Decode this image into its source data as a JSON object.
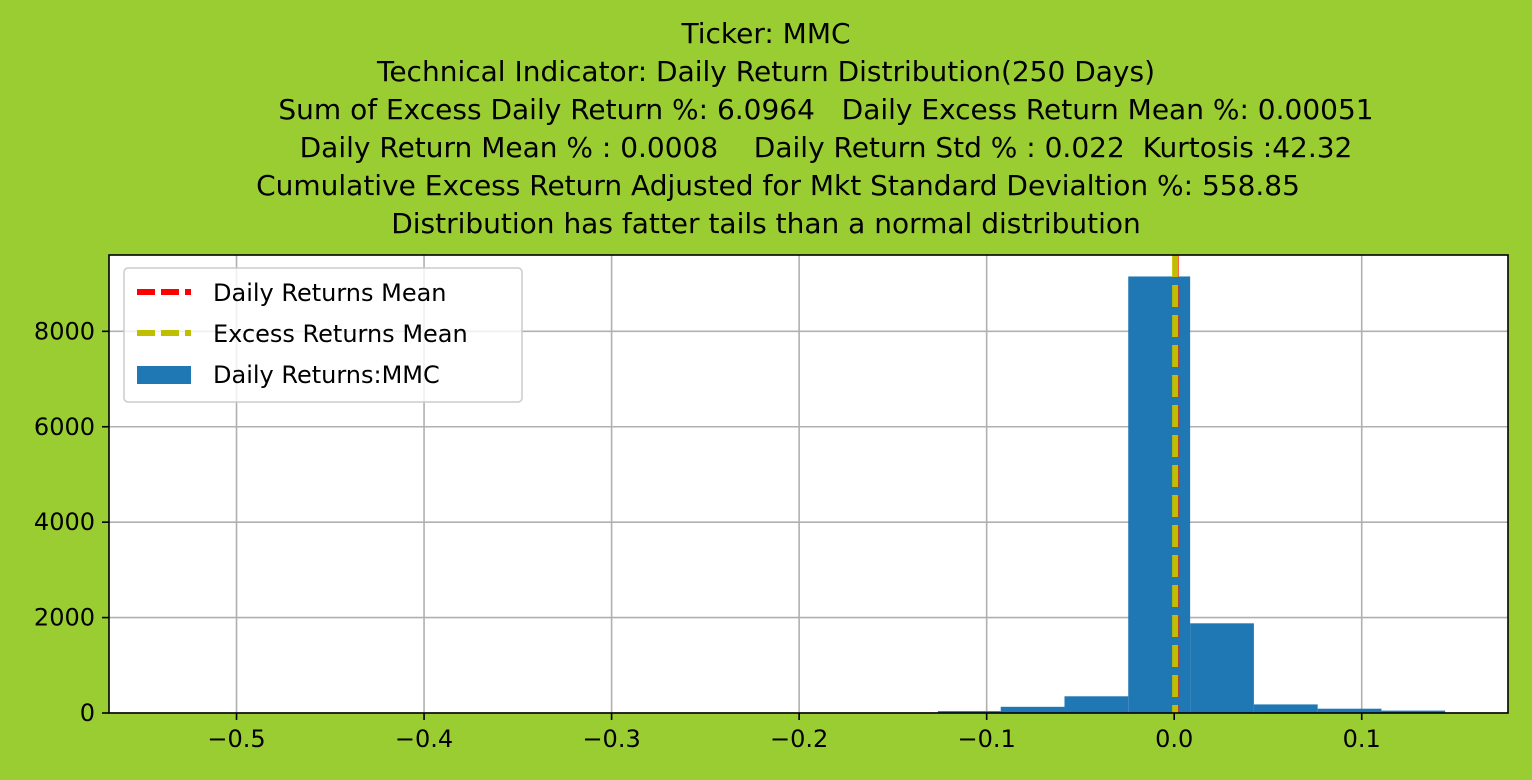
{
  "chart_data": {
    "type": "bar",
    "title_lines": [
      "Ticker: MMC",
      "Technical Indicator: Daily Return Distribution(250 Days)",
      "Sum of Excess Daily Return %: 6.0964   Daily Excess Return Mean %: 0.00051",
      "Daily Return Mean % : 0.0008    Daily Return Std % : 0.022  Kurtosis :42.32",
      "Cumulative Excess Return Adjusted for Mkt Standard Devialtion %: 558.85",
      "Distribution has fatter tails than a normal distribution"
    ],
    "xlabel": "",
    "ylabel": "",
    "xlim": [
      -0.568,
      0.178
    ],
    "ylim": [
      0,
      9600
    ],
    "x_ticks": [
      -0.5,
      -0.4,
      -0.3,
      -0.2,
      -0.1,
      0.0,
      0.1
    ],
    "x_tick_labels": [
      "−0.5",
      "−0.4",
      "−0.3",
      "−0.2",
      "−0.1",
      "0.0",
      "0.1"
    ],
    "y_ticks": [
      0,
      2000,
      4000,
      6000,
      8000
    ],
    "y_tick_labels": [
      "0",
      "2000",
      "4000",
      "6000",
      "8000"
    ],
    "grid": true,
    "bin_edges": [
      -0.126,
      -0.0925,
      -0.0585,
      -0.0245,
      0.0085,
      0.0425,
      0.0765,
      0.1105,
      0.1445
    ],
    "series": [
      {
        "name": "Daily Returns:MMC",
        "color": "#1f77b4",
        "counts": [
          40,
          130,
          350,
          9150,
          1880,
          180,
          90,
          50
        ]
      }
    ],
    "vertical_lines": [
      {
        "name": "Daily Returns Mean",
        "x": 0.0008,
        "color": "#ff0000",
        "style": "dashed"
      },
      {
        "name": "Excess Returns Mean",
        "x": 0.00051,
        "color": "#bfbf00",
        "style": "dashed"
      }
    ],
    "legend": {
      "placement": "upper-left",
      "entries": [
        "Daily Returns Mean",
        "Excess Returns Mean",
        "Daily Returns:MMC"
      ]
    }
  }
}
